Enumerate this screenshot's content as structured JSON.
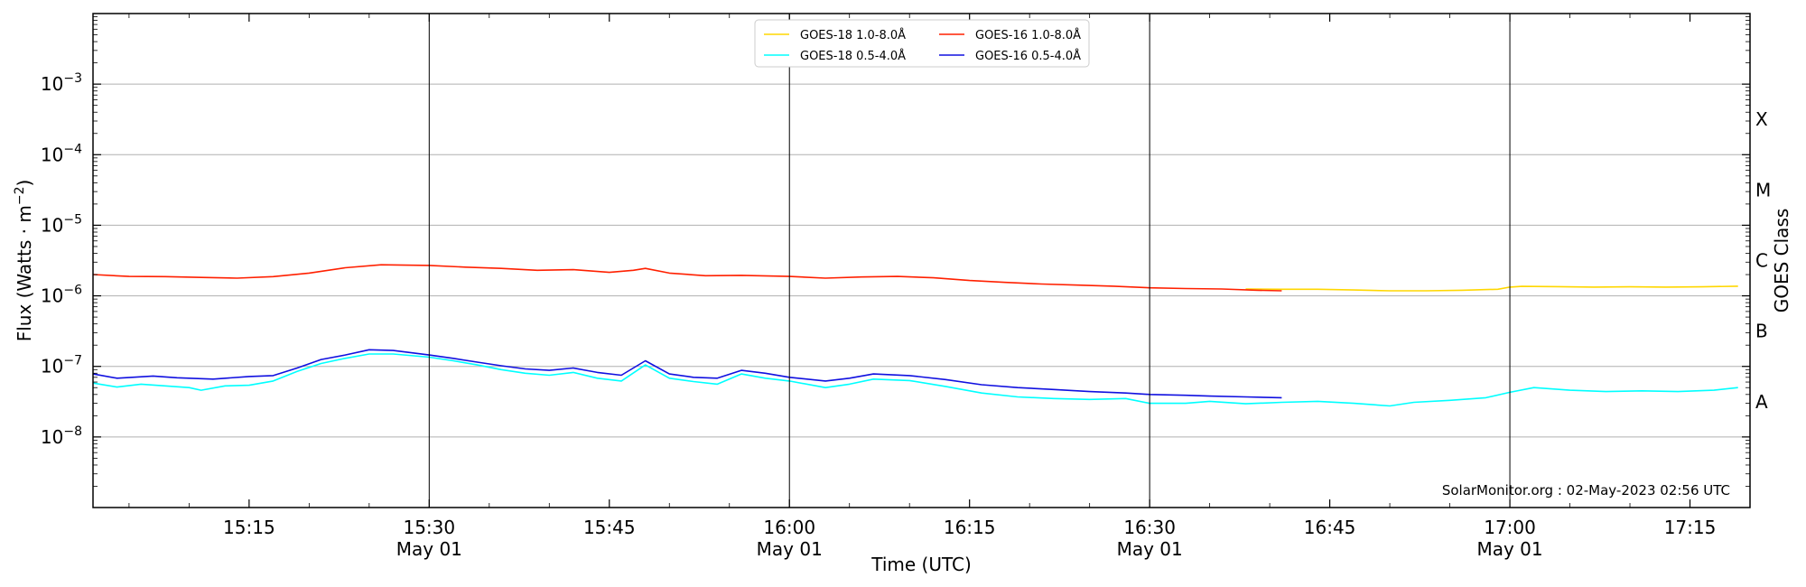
{
  "chart_data": {
    "type": "line",
    "y_scale": "log",
    "grid": "horizontal at decades",
    "legend_placement": "top-center",
    "xlabel": "Time (UTC)",
    "ylabel": "Flux (Watts · m⁻²)",
    "y2label": "GOES Class",
    "credit": "SolarMonitor.org : 02-May-2023 02:56 UTC",
    "xlim": [
      "15:02",
      "17:20"
    ],
    "ylim": [
      1e-09,
      0.01
    ],
    "x_ticks": [
      {
        "time": "15:15",
        "label": "15:15",
        "sub": ""
      },
      {
        "time": "15:30",
        "label": "15:30",
        "sub": "May 01"
      },
      {
        "time": "15:45",
        "label": "15:45",
        "sub": ""
      },
      {
        "time": "16:00",
        "label": "16:00",
        "sub": "May 01"
      },
      {
        "time": "16:15",
        "label": "16:15",
        "sub": ""
      },
      {
        "time": "16:30",
        "label": "16:30",
        "sub": "May 01"
      },
      {
        "time": "16:45",
        "label": "16:45",
        "sub": ""
      },
      {
        "time": "17:00",
        "label": "17:00",
        "sub": "May 01"
      },
      {
        "time": "17:15",
        "label": "17:15",
        "sub": ""
      }
    ],
    "y_ticks": [
      {
        "exp": -3,
        "base": "10",
        "sup": "−3"
      },
      {
        "exp": -4,
        "base": "10",
        "sup": "−4"
      },
      {
        "exp": -5,
        "base": "10",
        "sup": "−5"
      },
      {
        "exp": -6,
        "base": "10",
        "sup": "−6"
      },
      {
        "exp": -7,
        "base": "10",
        "sup": "−7"
      },
      {
        "exp": -8,
        "base": "10",
        "sup": "−8"
      }
    ],
    "class_labels": [
      {
        "label": "X",
        "exp": -3.5
      },
      {
        "label": "M",
        "exp": -4.5
      },
      {
        "label": "C",
        "exp": -5.5
      },
      {
        "label": "B",
        "exp": -6.5
      },
      {
        "label": "A",
        "exp": -7.5
      }
    ],
    "series": [
      {
        "name": "GOES-18 1.0-8.0Å",
        "color": "#FFD700",
        "points": [
          [
            "16:38",
            1.25e-06
          ],
          [
            "16:41",
            1.24e-06
          ],
          [
            "16:44",
            1.24e-06
          ],
          [
            "16:47",
            1.21e-06
          ],
          [
            "16:50",
            1.18e-06
          ],
          [
            "16:53",
            1.18e-06
          ],
          [
            "16:56",
            1.2e-06
          ],
          [
            "16:59",
            1.24e-06
          ],
          [
            "17:00",
            1.33e-06
          ],
          [
            "17:01",
            1.36e-06
          ],
          [
            "17:04",
            1.35e-06
          ],
          [
            "17:07",
            1.33e-06
          ],
          [
            "17:10",
            1.34e-06
          ],
          [
            "17:13",
            1.33e-06
          ],
          [
            "17:16",
            1.34e-06
          ],
          [
            "17:19",
            1.37e-06
          ]
        ]
      },
      {
        "name": "GOES-18 0.5-4.0Å",
        "color": "#00FFFF",
        "points": [
          [
            "15:02",
            5.8e-08
          ],
          [
            "15:04",
            5.1e-08
          ],
          [
            "15:06",
            5.6e-08
          ],
          [
            "15:08",
            5.3e-08
          ],
          [
            "15:10",
            5e-08
          ],
          [
            "15:11",
            4.6e-08
          ],
          [
            "15:13",
            5.3e-08
          ],
          [
            "15:15",
            5.4e-08
          ],
          [
            "15:17",
            6.2e-08
          ],
          [
            "15:19",
            8.5e-08
          ],
          [
            "15:21",
            1.1e-07
          ],
          [
            "15:23",
            1.3e-07
          ],
          [
            "15:25",
            1.5e-07
          ],
          [
            "15:27",
            1.5e-07
          ],
          [
            "15:30",
            1.35e-07
          ],
          [
            "15:32",
            1.2e-07
          ],
          [
            "15:34",
            1.05e-07
          ],
          [
            "15:36",
            9e-08
          ],
          [
            "15:38",
            8e-08
          ],
          [
            "15:40",
            7.5e-08
          ],
          [
            "15:42",
            8.2e-08
          ],
          [
            "15:44",
            6.8e-08
          ],
          [
            "15:46",
            6.2e-08
          ],
          [
            "15:48",
            1.05e-07
          ],
          [
            "15:50",
            6.8e-08
          ],
          [
            "15:52",
            6.1e-08
          ],
          [
            "15:54",
            5.6e-08
          ],
          [
            "15:56",
            7.8e-08
          ],
          [
            "15:58",
            6.8e-08
          ],
          [
            "16:00",
            6.2e-08
          ],
          [
            "16:03",
            5e-08
          ],
          [
            "16:05",
            5.6e-08
          ],
          [
            "16:07",
            6.6e-08
          ],
          [
            "16:10",
            6.3e-08
          ],
          [
            "16:13",
            5.2e-08
          ],
          [
            "16:16",
            4.2e-08
          ],
          [
            "16:19",
            3.7e-08
          ],
          [
            "16:22",
            3.5e-08
          ],
          [
            "16:25",
            3.4e-08
          ],
          [
            "16:28",
            3.5e-08
          ],
          [
            "16:30",
            3e-08
          ],
          [
            "16:33",
            3e-08
          ],
          [
            "16:35",
            3.2e-08
          ],
          [
            "16:38",
            2.95e-08
          ],
          [
            "16:41",
            3.1e-08
          ],
          [
            "16:44",
            3.2e-08
          ],
          [
            "16:47",
            3e-08
          ],
          [
            "16:50",
            2.75e-08
          ],
          [
            "16:52",
            3.1e-08
          ],
          [
            "16:55",
            3.3e-08
          ],
          [
            "16:58",
            3.6e-08
          ],
          [
            "17:00",
            4.3e-08
          ],
          [
            "17:02",
            5e-08
          ],
          [
            "17:05",
            4.6e-08
          ],
          [
            "17:08",
            4.4e-08
          ],
          [
            "17:11",
            4.5e-08
          ],
          [
            "17:14",
            4.4e-08
          ],
          [
            "17:17",
            4.6e-08
          ],
          [
            "17:19",
            5e-08
          ]
        ]
      },
      {
        "name": "GOES-16 1.0-8.0Å",
        "color": "#FF2000",
        "points": [
          [
            "15:02",
            2e-06
          ],
          [
            "15:05",
            1.88e-06
          ],
          [
            "15:08",
            1.87e-06
          ],
          [
            "15:11",
            1.82e-06
          ],
          [
            "15:14",
            1.78e-06
          ],
          [
            "15:17",
            1.87e-06
          ],
          [
            "15:20",
            2.1e-06
          ],
          [
            "15:23",
            2.5e-06
          ],
          [
            "15:26",
            2.75e-06
          ],
          [
            "15:30",
            2.7e-06
          ],
          [
            "15:33",
            2.55e-06
          ],
          [
            "15:36",
            2.45e-06
          ],
          [
            "15:39",
            2.3e-06
          ],
          [
            "15:42",
            2.35e-06
          ],
          [
            "15:45",
            2.15e-06
          ],
          [
            "15:47",
            2.3e-06
          ],
          [
            "15:48",
            2.45e-06
          ],
          [
            "15:50",
            2.1e-06
          ],
          [
            "15:53",
            1.93e-06
          ],
          [
            "15:56",
            1.95e-06
          ],
          [
            "16:00",
            1.88e-06
          ],
          [
            "16:03",
            1.78e-06
          ],
          [
            "16:06",
            1.85e-06
          ],
          [
            "16:09",
            1.88e-06
          ],
          [
            "16:12",
            1.8e-06
          ],
          [
            "16:15",
            1.65e-06
          ],
          [
            "16:18",
            1.55e-06
          ],
          [
            "16:21",
            1.47e-06
          ],
          [
            "16:24",
            1.42e-06
          ],
          [
            "16:27",
            1.37e-06
          ],
          [
            "16:30",
            1.3e-06
          ],
          [
            "16:33",
            1.27e-06
          ],
          [
            "16:36",
            1.25e-06
          ],
          [
            "16:39",
            1.2e-06
          ],
          [
            "16:41",
            1.18e-06
          ]
        ]
      },
      {
        "name": "GOES-16 0.5-4.0Å",
        "color": "#1010E0",
        "points": [
          [
            "15:02",
            7.8e-08
          ],
          [
            "15:04",
            6.8e-08
          ],
          [
            "15:07",
            7.3e-08
          ],
          [
            "15:09",
            6.9e-08
          ],
          [
            "15:12",
            6.6e-08
          ],
          [
            "15:15",
            7.2e-08
          ],
          [
            "15:17",
            7.4e-08
          ],
          [
            "15:19",
            9.5e-08
          ],
          [
            "15:21",
            1.25e-07
          ],
          [
            "15:23",
            1.45e-07
          ],
          [
            "15:25",
            1.72e-07
          ],
          [
            "15:27",
            1.68e-07
          ],
          [
            "15:30",
            1.45e-07
          ],
          [
            "15:32",
            1.3e-07
          ],
          [
            "15:34",
            1.15e-07
          ],
          [
            "15:36",
            1.02e-07
          ],
          [
            "15:38",
            9.2e-08
          ],
          [
            "15:40",
            8.8e-08
          ],
          [
            "15:42",
            9.5e-08
          ],
          [
            "15:44",
            8.2e-08
          ],
          [
            "15:46",
            7.5e-08
          ],
          [
            "15:48",
            1.2e-07
          ],
          [
            "15:50",
            7.8e-08
          ],
          [
            "15:52",
            7e-08
          ],
          [
            "15:54",
            6.8e-08
          ],
          [
            "15:56",
            8.8e-08
          ],
          [
            "15:58",
            8e-08
          ],
          [
            "16:00",
            7e-08
          ],
          [
            "16:03",
            6.2e-08
          ],
          [
            "16:05",
            6.8e-08
          ],
          [
            "16:07",
            7.8e-08
          ],
          [
            "16:10",
            7.4e-08
          ],
          [
            "16:13",
            6.5e-08
          ],
          [
            "16:16",
            5.5e-08
          ],
          [
            "16:19",
            5e-08
          ],
          [
            "16:22",
            4.7e-08
          ],
          [
            "16:25",
            4.4e-08
          ],
          [
            "16:28",
            4.2e-08
          ],
          [
            "16:30",
            4e-08
          ],
          [
            "16:33",
            3.9e-08
          ],
          [
            "16:35",
            3.8e-08
          ],
          [
            "16:38",
            3.7e-08
          ],
          [
            "16:41",
            3.6e-08
          ]
        ]
      }
    ]
  }
}
